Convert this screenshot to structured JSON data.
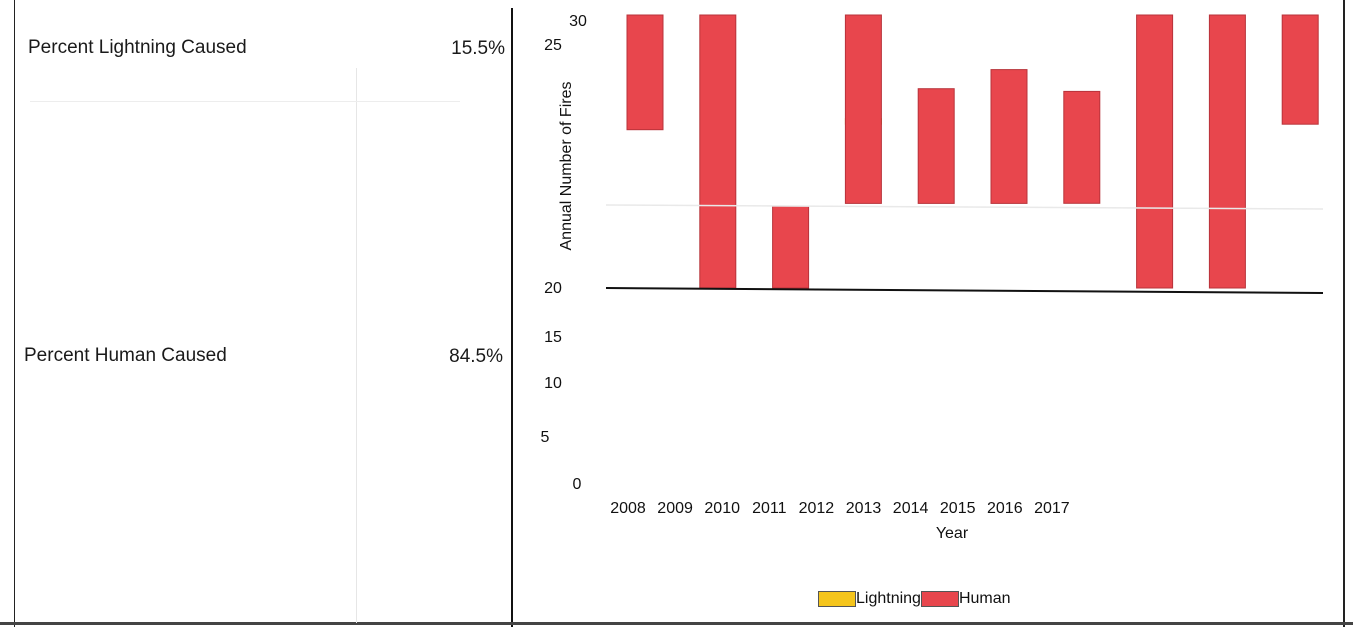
{
  "stats": {
    "lightning_label": "Percent Lightning Caused",
    "lightning_value": "15.5%",
    "human_label": "Percent Human Caused",
    "human_value": "84.5%"
  },
  "colors": {
    "lightning": "#F5C51C",
    "human": "#E8464D",
    "human_edge": "#B8333A"
  },
  "chart_data": {
    "type": "bar",
    "title": "",
    "xlabel": "Year",
    "ylabel": "Annual Number of Fires",
    "x_ticks": [
      "2008",
      "2009",
      "2010",
      "2011",
      "2012",
      "2013",
      "2014",
      "2015",
      "2016",
      "2017"
    ],
    "y_ticks": [
      "0",
      "5",
      "10",
      "15",
      "20",
      "25",
      "30"
    ],
    "ylim": [
      20,
      30
    ],
    "grid": false,
    "legend_position": "bottom",
    "series": [
      {
        "name": "Lightning",
        "color": "#F5C51C",
        "bars": [
          {
            "category": "2011",
            "y_start": 26.0,
            "y_end": 26.2
          }
        ]
      },
      {
        "name": "Human",
        "color": "#E8464D",
        "bars": [
          {
            "category": "2008",
            "y_start": 25.8,
            "y_end": 30.0
          },
          {
            "category": "2009",
            "y_start": 20.0,
            "y_end": 30.0
          },
          {
            "category": "2010",
            "y_start": 20.0,
            "y_end": 23.0
          },
          {
            "category": "2011",
            "y_start": 23.1,
            "y_end": 30.0
          },
          {
            "category": "2012",
            "y_start": 23.1,
            "y_end": 27.3
          },
          {
            "category": "2013",
            "y_start": 23.1,
            "y_end": 28.0
          },
          {
            "category": "2014",
            "y_start": 23.1,
            "y_end": 27.2
          },
          {
            "category": "2015",
            "y_start": 20.0,
            "y_end": 30.0
          },
          {
            "category": "2016",
            "y_start": 20.0,
            "y_end": 30.0
          },
          {
            "category": "2017",
            "y_start": 26.0,
            "y_end": 30.0
          }
        ]
      }
    ]
  }
}
